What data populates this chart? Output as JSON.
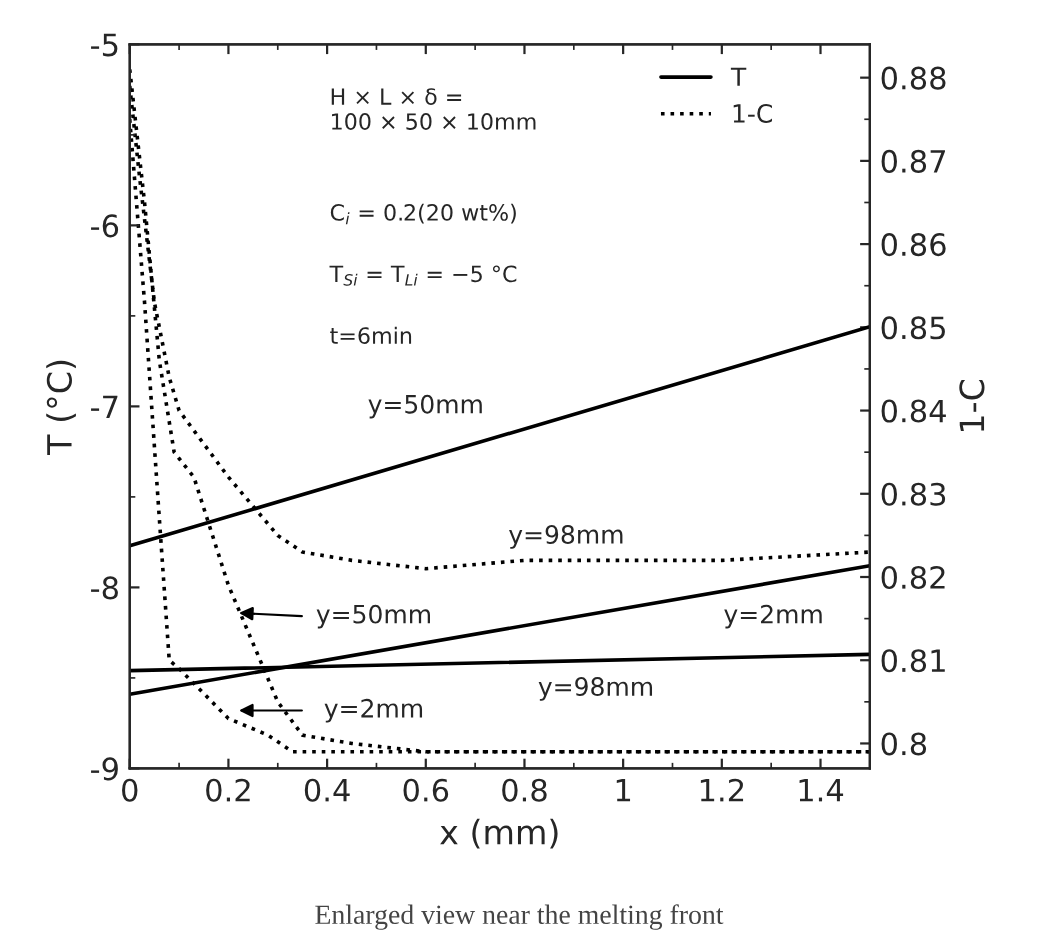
{
  "chart_data": {
    "type": "line",
    "xlabel": "x (mm)",
    "ylabel": "T (°C)",
    "y2label": "1-C",
    "xlim": [
      0,
      1.5
    ],
    "xticks": [
      0,
      0.2,
      0.4,
      0.6,
      0.8,
      1,
      1.2,
      1.4
    ],
    "ylim": [
      -9,
      -5
    ],
    "yticks": [
      -9,
      -8,
      -7,
      -6,
      -5
    ],
    "y2lim": [
      0.797,
      0.884
    ],
    "y2ticks": [
      0.8,
      0.81,
      0.82,
      0.83,
      0.84,
      0.85,
      0.86,
      0.87,
      0.88
    ],
    "grid": false,
    "legend": "top right",
    "marker": "none",
    "series": [
      {
        "name": "T",
        "color": "#000000",
        "line_style": "solid",
        "x": [
          0,
          1.5
        ],
        "values": [
          -7.77,
          -6.56
        ]
      },
      {
        "color": "#000000",
        "line_style": "solid",
        "x": [
          0,
          1.5
        ],
        "values": [
          -8.59,
          -7.88
        ]
      },
      {
        "color": "#000000",
        "line_style": "solid",
        "x": [
          0,
          1.5
        ],
        "values": [
          -8.46,
          -8.37
        ]
      },
      {
        "name": "1-C",
        "color": "#000000",
        "line_style": "dotted",
        "axis": "y2",
        "x": [
          0,
          0.02,
          0.05,
          0.08,
          0.1,
          0.2,
          0.3,
          0.35,
          0.45,
          0.6,
          0.8,
          1.0,
          1.2,
          1.5
        ],
        "values": [
          0.879,
          0.868,
          0.853,
          0.844,
          0.84,
          0.832,
          0.825,
          0.823,
          0.822,
          0.821,
          0.822,
          0.822,
          0.822,
          0.823
        ]
      },
      {
        "color": "#000000",
        "line_style": "dotted",
        "axis": "y2",
        "x": [
          0,
          0.03,
          0.06,
          0.09,
          0.13,
          0.2,
          0.3,
          0.35,
          0.45,
          0.6,
          1.5
        ],
        "values": [
          0.881,
          0.865,
          0.846,
          0.835,
          0.832,
          0.819,
          0.805,
          0.801,
          0.8,
          0.799,
          0.799
        ]
      },
      {
        "color": "#000000",
        "line_style": "dotted",
        "axis": "y2",
        "x": [
          0,
          0.03,
          0.06,
          0.08,
          0.1,
          0.15,
          0.2,
          0.28,
          0.33,
          0.4,
          1.5
        ],
        "values": [
          0.875,
          0.853,
          0.827,
          0.81,
          0.809,
          0.806,
          0.803,
          0.801,
          0.799,
          0.799,
          0.799
        ]
      }
    ],
    "annotations": [
      "H × L × δ =\n100 × 50 × 10mm",
      "C$_{i}$ = 0.2(20 wt%)",
      "T$_{Si}$ = T$_{Li}$ = −5 °C",
      "t=6min",
      "y=50mm",
      "y=98mm",
      "y=50mm",
      "y=2mm",
      "y=98mm",
      "y=2mm",
      "Enlarged view near the melting front"
    ]
  }
}
